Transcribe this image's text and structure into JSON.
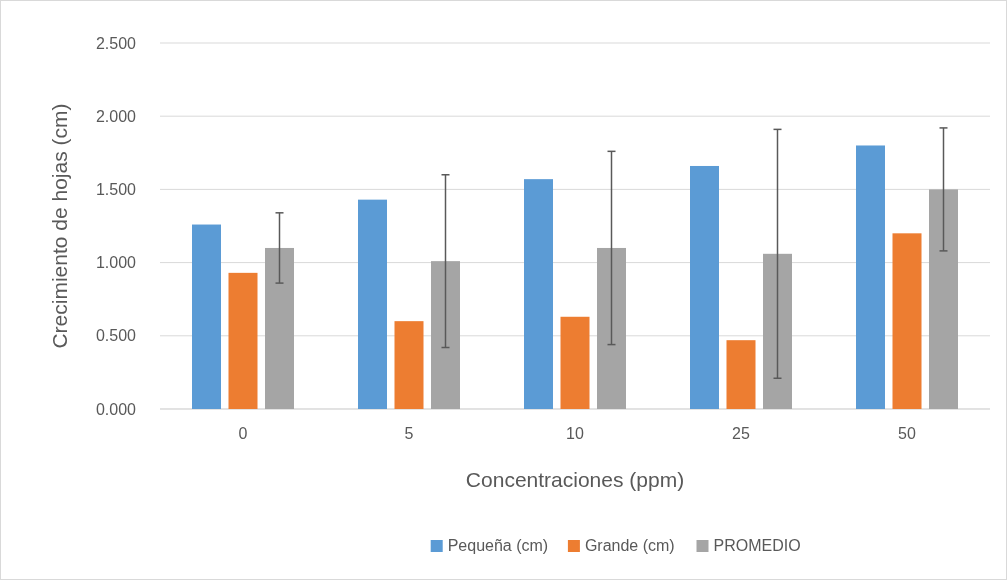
{
  "chart_data": {
    "type": "bar",
    "xlabel": "Concentraciones (ppm)",
    "ylabel": "Crecimiento de hojas (cm)",
    "categories": [
      "0",
      "5",
      "10",
      "25",
      "50"
    ],
    "series": [
      {
        "name": "Pequeña (cm)",
        "color": "#5b9bd5",
        "values": [
          1.26,
          1.43,
          1.57,
          1.66,
          1.8
        ]
      },
      {
        "name": "Grande (cm)",
        "color": "#ed7d31",
        "values": [
          0.93,
          0.6,
          0.63,
          0.47,
          1.2
        ]
      },
      {
        "name": "PROMEDIO",
        "color": "#a5a5a5",
        "values": [
          1.1,
          1.01,
          1.1,
          1.06,
          1.5
        ],
        "errors": [
          0.24,
          0.59,
          0.66,
          0.85,
          0.42
        ]
      }
    ],
    "ylim": [
      0,
      2.5
    ],
    "yticks": [
      {
        "value": 0,
        "label": "0.000"
      },
      {
        "value": 0.5,
        "label": "0.500"
      },
      {
        "value": 1,
        "label": "1.000"
      },
      {
        "value": 1.5,
        "label": "1.500"
      },
      {
        "value": 2,
        "label": "2.000"
      },
      {
        "value": 2.5,
        "label": "2.500"
      }
    ],
    "grid": "y",
    "legend": "bottom"
  }
}
